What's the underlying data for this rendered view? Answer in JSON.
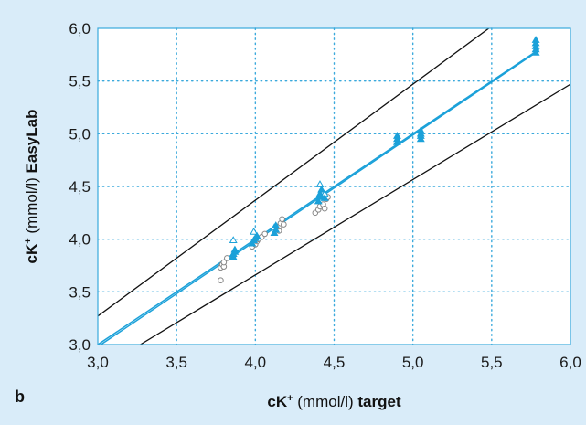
{
  "panel_label": "b",
  "colors": {
    "background": "#d9ecf9",
    "plot_bg": "#ffffff",
    "grid": "#3aa9dc",
    "accent": "#1ba1d9",
    "boundary_lines": "#111111",
    "reference_markers": "#888888"
  },
  "chart_data": {
    "type": "scatter",
    "xlabel": {
      "prefix": "cK",
      "sup": "+",
      "unit": " (mmol/l) ",
      "bold_suffix": "target"
    },
    "ylabel": {
      "prefix": "cK",
      "sup": "+",
      "unit": " (mmol/l) ",
      "bold_suffix": "EasyLab"
    },
    "xlim": [
      3.0,
      6.0
    ],
    "ylim": [
      3.0,
      6.0
    ],
    "xticks": [
      "3,0",
      "3,5",
      "4,0",
      "4,5",
      "5,0",
      "5,5",
      "6,0"
    ],
    "yticks": [
      "3,0",
      "3,5",
      "4,0",
      "4,5",
      "5,0",
      "5,5",
      "6,0"
    ],
    "grid": "dotted",
    "series": [
      {
        "marker": "open-circle",
        "color": "#888888",
        "points": [
          [
            3.78,
            3.61
          ],
          [
            3.78,
            3.73
          ],
          [
            3.79,
            3.76
          ],
          [
            3.8,
            3.74
          ],
          [
            3.8,
            3.78
          ],
          [
            3.82,
            3.82
          ],
          [
            3.86,
            3.84
          ],
          [
            3.98,
            3.93
          ],
          [
            4.0,
            3.95
          ],
          [
            4.01,
            3.98
          ],
          [
            4.02,
            4.0
          ],
          [
            4.04,
            4.02
          ],
          [
            4.06,
            4.05
          ],
          [
            4.15,
            4.08
          ],
          [
            4.15,
            4.12
          ],
          [
            4.16,
            4.15
          ],
          [
            4.17,
            4.19
          ],
          [
            4.18,
            4.14
          ],
          [
            4.38,
            4.25
          ],
          [
            4.4,
            4.28
          ],
          [
            4.41,
            4.31
          ],
          [
            4.43,
            4.33
          ],
          [
            4.44,
            4.29
          ],
          [
            4.45,
            4.38
          ],
          [
            4.46,
            4.4
          ]
        ]
      },
      {
        "marker": "open-triangle",
        "color": "#1ba1d9",
        "points": [
          [
            3.86,
            3.99
          ],
          [
            3.99,
            4.07
          ],
          [
            4.12,
            4.11
          ],
          [
            4.41,
            4.52
          ],
          [
            4.44,
            4.43
          ]
        ]
      },
      {
        "marker": "filled-triangle",
        "color": "#1ba1d9",
        "points": [
          [
            3.86,
            3.83
          ],
          [
            3.86,
            3.86
          ],
          [
            3.87,
            3.88
          ],
          [
            3.87,
            3.9
          ],
          [
            3.98,
            3.96
          ],
          [
            3.99,
            3.99
          ],
          [
            4.0,
            4.01
          ],
          [
            4.01,
            4.03
          ],
          [
            4.12,
            4.06
          ],
          [
            4.13,
            4.09
          ],
          [
            4.13,
            4.13
          ],
          [
            4.4,
            4.36
          ],
          [
            4.41,
            4.4
          ],
          [
            4.41,
            4.43
          ],
          [
            4.42,
            4.47
          ],
          [
            4.44,
            4.39
          ],
          [
            4.9,
            4.92
          ],
          [
            4.9,
            4.95
          ],
          [
            4.9,
            4.98
          ],
          [
            5.05,
            4.95
          ],
          [
            5.05,
            4.98
          ],
          [
            5.05,
            5.0
          ],
          [
            5.05,
            5.03
          ],
          [
            5.78,
            5.77
          ],
          [
            5.78,
            5.8
          ],
          [
            5.78,
            5.83
          ],
          [
            5.78,
            5.86
          ],
          [
            5.78,
            5.89
          ]
        ]
      }
    ],
    "lines": [
      {
        "name_hidden": "identity",
        "color": "#1ba1d9",
        "from": [
          3.0,
          3.0
        ],
        "to": [
          5.8,
          5.8
        ]
      },
      {
        "name_hidden": "regression",
        "color": "#1ba1d9",
        "from": [
          3.0,
          2.98
        ],
        "to": [
          5.8,
          5.79
        ]
      },
      {
        "name_hidden": "upper-limit",
        "color": "#111111",
        "from": [
          3.0,
          3.27
        ],
        "to": [
          5.5,
          6.02
        ]
      },
      {
        "name_hidden": "lower-limit",
        "color": "#111111",
        "from": [
          3.27,
          3.0
        ],
        "to": [
          6.0,
          5.47
        ]
      }
    ]
  }
}
